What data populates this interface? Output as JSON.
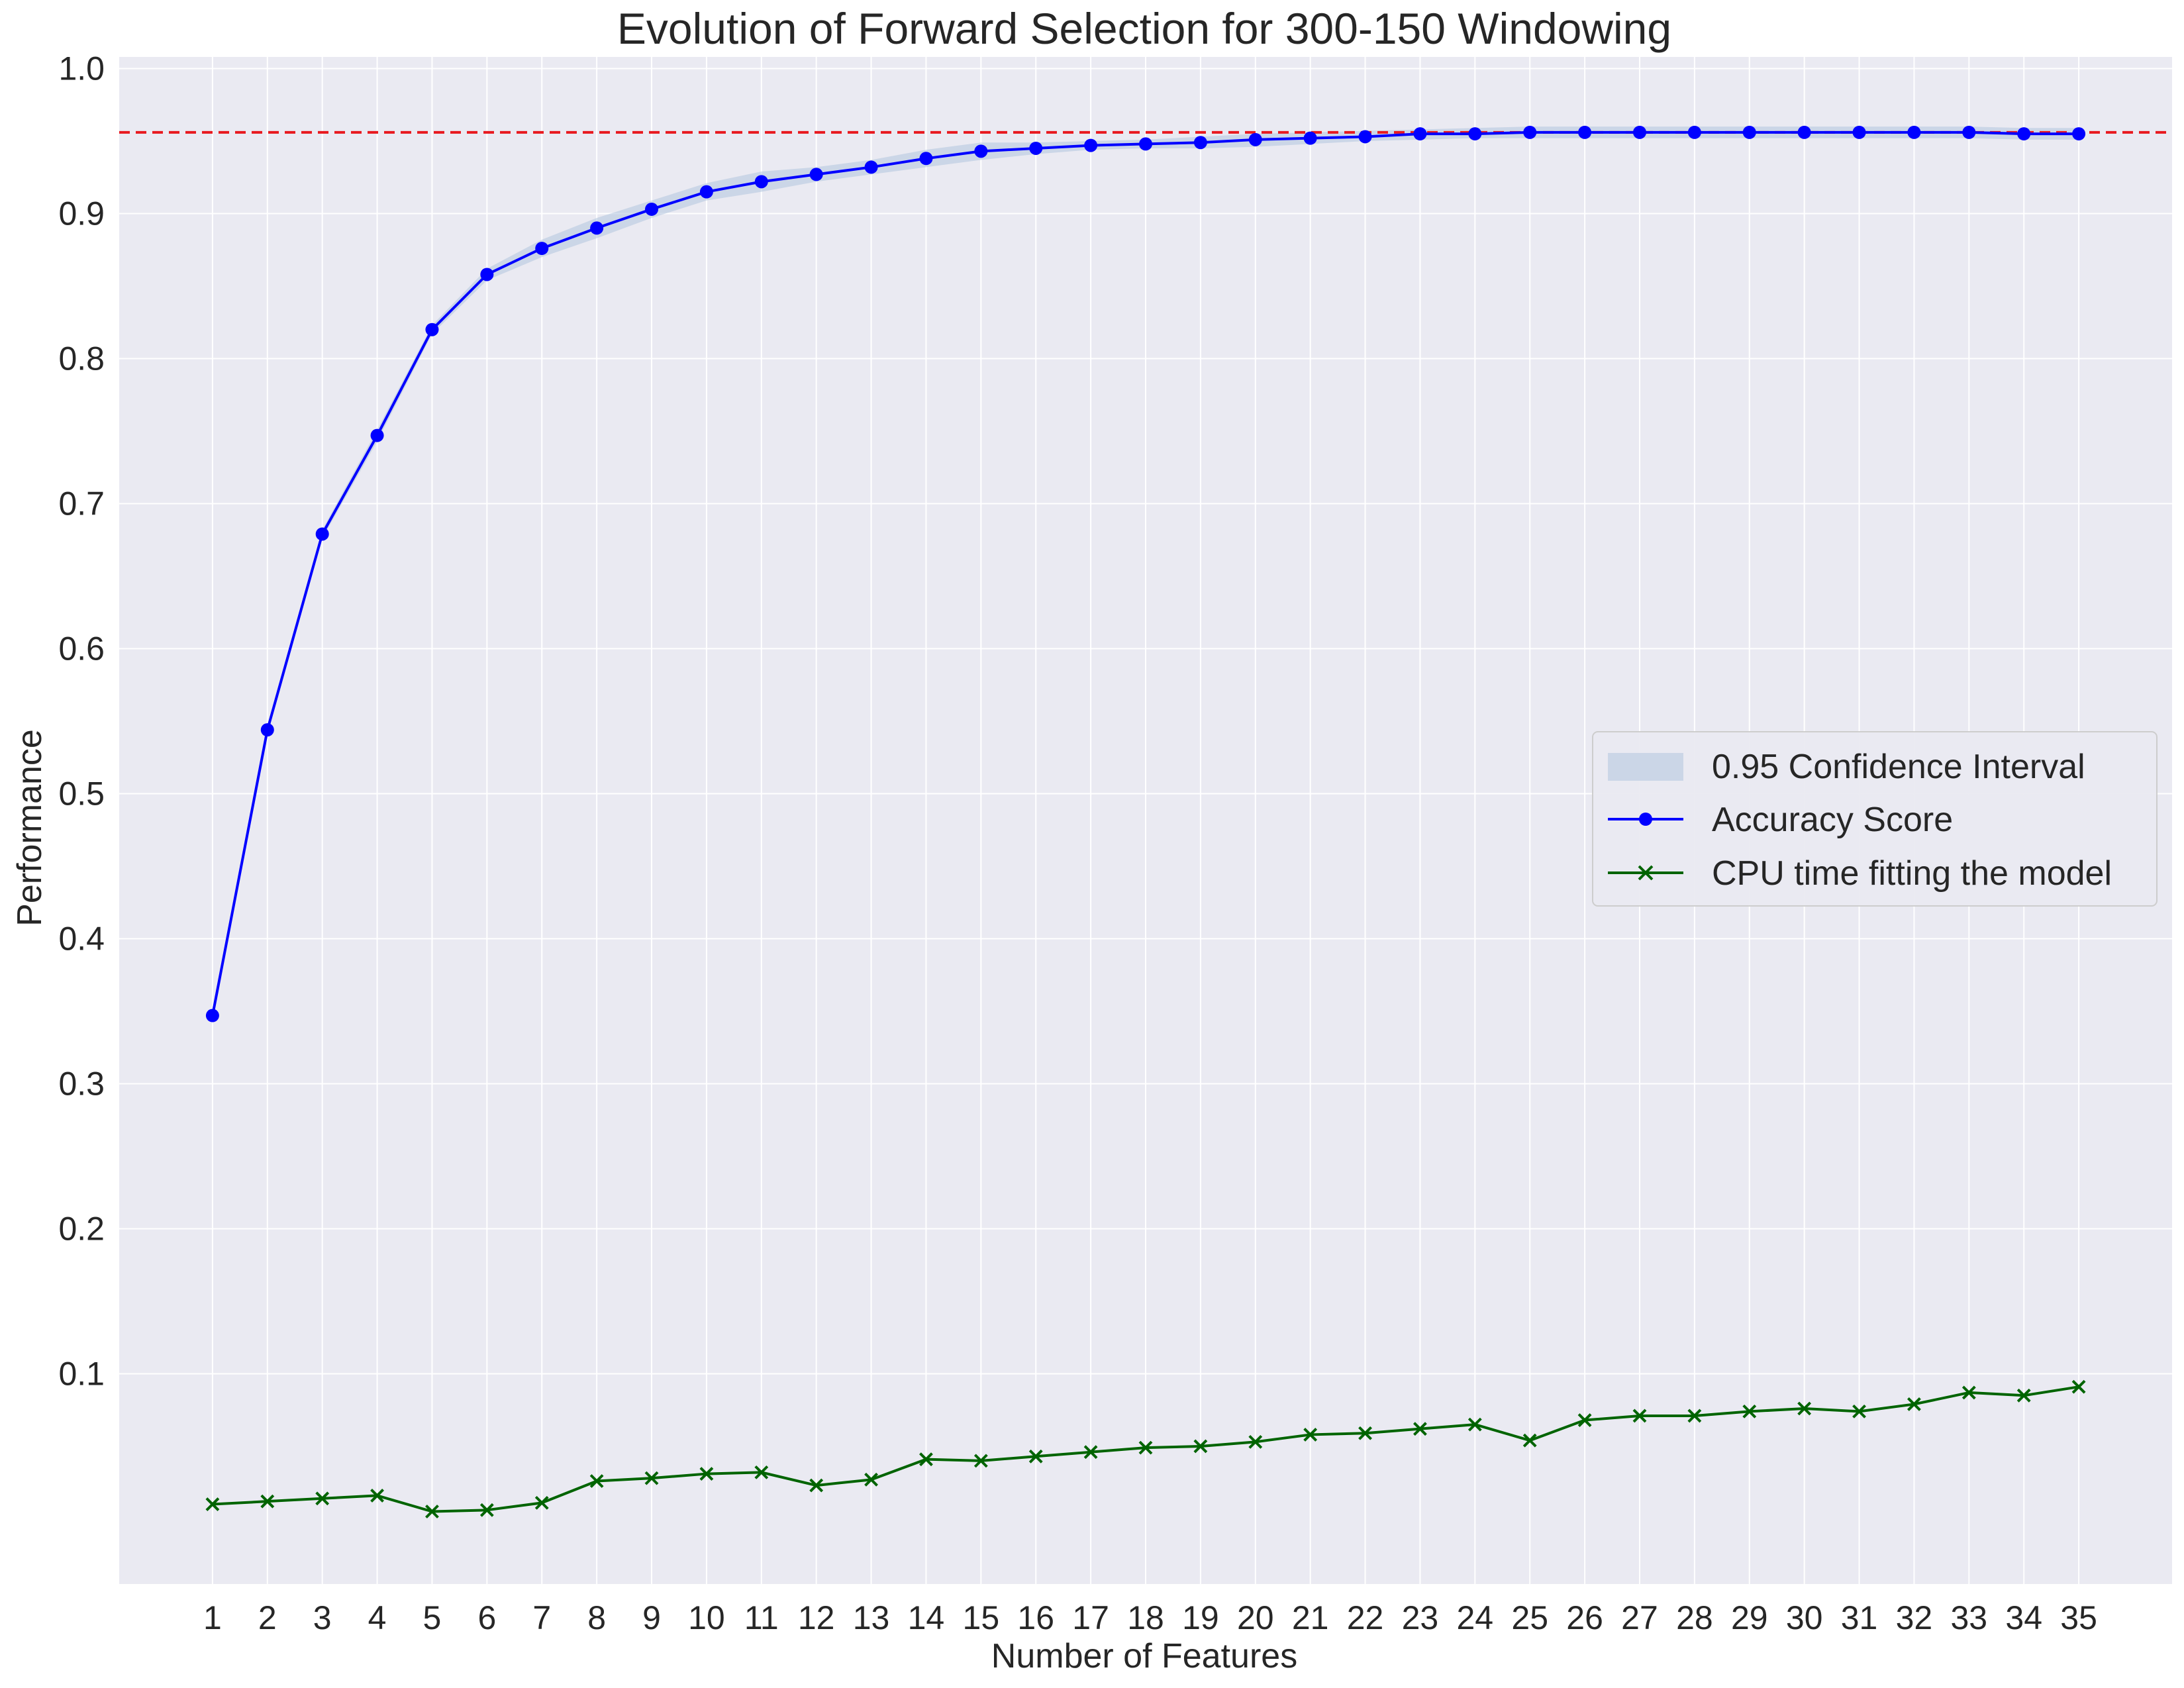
{
  "chart_data": {
    "type": "line",
    "title": "Evolution of Forward Selection for 300-150 Windowing",
    "xlabel": "Number of Features",
    "ylabel": "Performance",
    "categories": [
      1,
      2,
      3,
      4,
      5,
      6,
      7,
      8,
      9,
      10,
      11,
      12,
      13,
      14,
      15,
      16,
      17,
      18,
      19,
      20,
      21,
      22,
      23,
      24,
      25,
      26,
      27,
      28,
      29,
      30,
      31,
      32,
      33,
      34,
      35
    ],
    "x_tick_labels": [
      "1",
      "2",
      "3",
      "4",
      "5",
      "6",
      "7",
      "8",
      "9",
      "10",
      "11",
      "12",
      "13",
      "14",
      "15",
      "16",
      "17",
      "18",
      "19",
      "20",
      "21",
      "22",
      "23",
      "24",
      "25",
      "26",
      "27",
      "28",
      "29",
      "30",
      "31",
      "32",
      "33",
      "34",
      "35"
    ],
    "xlim": [
      -0.7,
      36.7
    ],
    "ylim": [
      -0.045,
      1.008
    ],
    "y_ticks": [
      0.1,
      0.2,
      0.3,
      0.4,
      0.5,
      0.6,
      0.7,
      0.8,
      0.9,
      1.0
    ],
    "y_tick_labels": [
      "0.1",
      "0.2",
      "0.3",
      "0.4",
      "0.5",
      "0.6",
      "0.7",
      "0.8",
      "0.9",
      "1.0"
    ],
    "grid": true,
    "legend_position": "center-right",
    "reference_line": {
      "y": 0.956,
      "style": "dashed",
      "color": "#e8191f"
    },
    "series": [
      {
        "name": "Accuracy Score",
        "marker": "circle",
        "color": "#0000ff",
        "values": [
          0.347,
          0.544,
          0.679,
          0.747,
          0.82,
          0.858,
          0.876,
          0.89,
          0.903,
          0.915,
          0.922,
          0.927,
          0.932,
          0.938,
          0.943,
          0.945,
          0.947,
          0.948,
          0.949,
          0.951,
          0.952,
          0.953,
          0.955,
          0.955,
          0.956,
          0.956,
          0.956,
          0.956,
          0.956,
          0.956,
          0.956,
          0.956,
          0.956,
          0.955,
          0.955
        ]
      },
      {
        "name": "CPU time fitting the model",
        "marker": "x",
        "color": "#006400",
        "values": [
          0.01,
          0.012,
          0.014,
          0.016,
          0.005,
          0.006,
          0.011,
          0.026,
          0.028,
          0.031,
          0.032,
          0.023,
          0.027,
          0.041,
          0.04,
          0.043,
          0.046,
          0.049,
          0.05,
          0.053,
          0.058,
          0.059,
          0.062,
          0.065,
          0.054,
          0.068,
          0.071,
          0.071,
          0.074,
          0.076,
          0.074,
          0.079,
          0.087,
          0.085,
          0.091
        ]
      }
    ],
    "confidence_interval": {
      "name": "0.95 Confidence Interval",
      "color": "#b0c4de",
      "lower": [
        0.344,
        0.542,
        0.676,
        0.743,
        0.817,
        0.854,
        0.87,
        0.883,
        0.897,
        0.909,
        0.915,
        0.922,
        0.927,
        0.932,
        0.937,
        0.941,
        0.944,
        0.945,
        0.945,
        0.946,
        0.948,
        0.95,
        0.951,
        0.952,
        0.952,
        0.952,
        0.952,
        0.952,
        0.952,
        0.952,
        0.952,
        0.952,
        0.952,
        0.951,
        0.951
      ],
      "upper": [
        0.35,
        0.546,
        0.682,
        0.751,
        0.823,
        0.862,
        0.882,
        0.897,
        0.909,
        0.921,
        0.929,
        0.932,
        0.937,
        0.944,
        0.949,
        0.949,
        0.95,
        0.951,
        0.953,
        0.955,
        0.956,
        0.957,
        0.958,
        0.959,
        0.96,
        0.96,
        0.96,
        0.96,
        0.96,
        0.96,
        0.96,
        0.96,
        0.96,
        0.959,
        0.959
      ]
    }
  }
}
